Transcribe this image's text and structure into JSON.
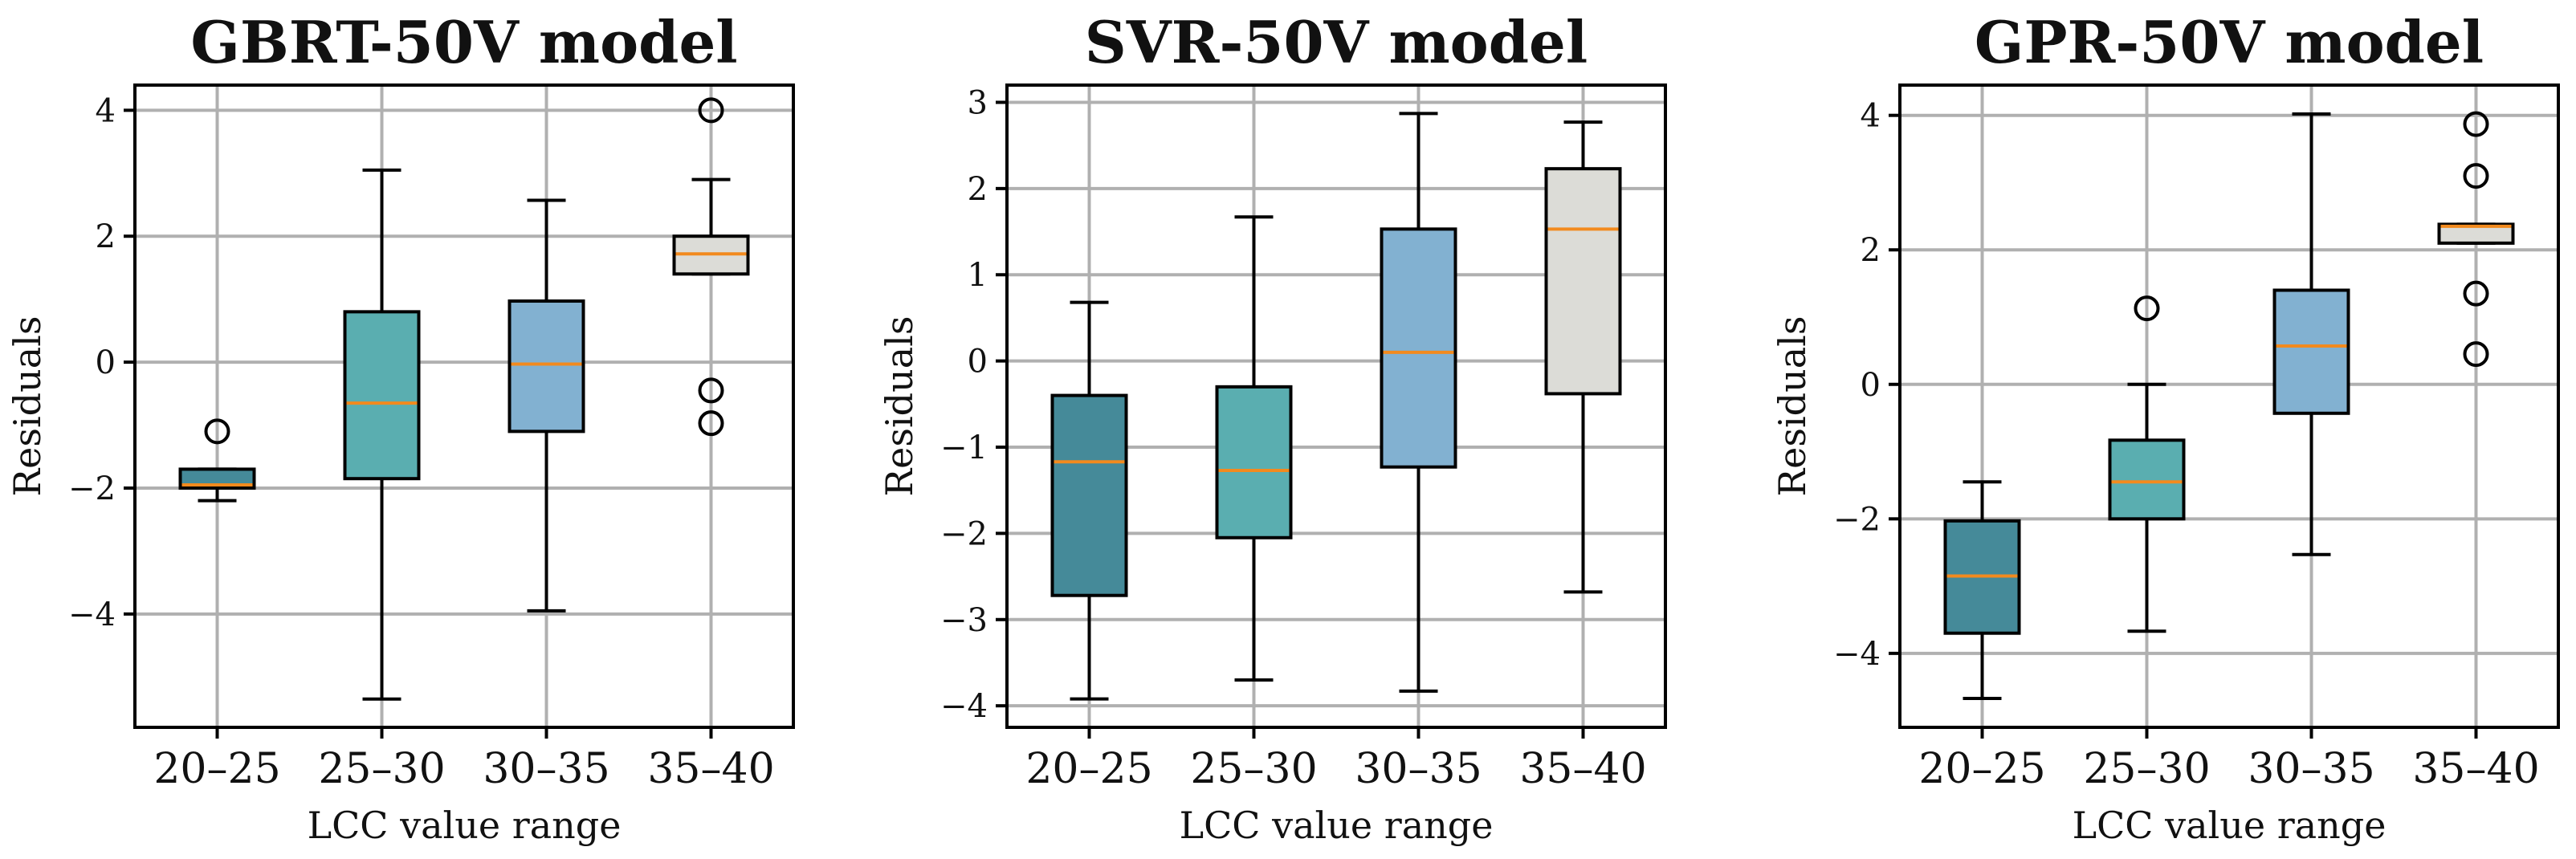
{
  "chart_data": [
    {
      "type": "box",
      "title": "GBRT-50V model",
      "xlabel": "LCC value range",
      "ylabel": "Residuals",
      "categories": [
        "20–25",
        "25–30",
        "30–35",
        "35–40"
      ],
      "ylim": [
        -5.8,
        4.4
      ],
      "yticks": [
        -4,
        -2,
        0,
        2,
        4
      ],
      "ytick_labels": [
        "−4",
        "−2",
        "0",
        "2",
        "4"
      ],
      "grid": true,
      "boxes": [
        {
          "whisker_low": -2.2,
          "q1": -2.0,
          "median": -1.95,
          "q3": -1.7,
          "whisker_high": -1.7,
          "outliers": [
            -1.1
          ]
        },
        {
          "whisker_low": -5.35,
          "q1": -1.85,
          "median": -0.65,
          "q3": 0.8,
          "whisker_high": 3.05,
          "outliers": []
        },
        {
          "whisker_low": -3.95,
          "q1": -1.1,
          "median": -0.03,
          "q3": 0.97,
          "whisker_high": 2.57,
          "outliers": []
        },
        {
          "whisker_low": 1.4,
          "q1": 1.4,
          "median": 1.72,
          "q3": 2.0,
          "whisker_high": 2.9,
          "outliers": [
            4.0,
            -0.45,
            -0.97
          ]
        }
      ]
    },
    {
      "type": "box",
      "title": "SVR-50V model",
      "xlabel": "LCC value range",
      "ylabel": "Residuals",
      "categories": [
        "20–25",
        "25–30",
        "30–35",
        "35–40"
      ],
      "ylim": [
        -4.25,
        3.2
      ],
      "yticks": [
        -4,
        -3,
        -2,
        -1,
        0,
        1,
        2,
        3
      ],
      "ytick_labels": [
        "−4",
        "−3",
        "−2",
        "−1",
        "0",
        "1",
        "2",
        "3"
      ],
      "grid": true,
      "boxes": [
        {
          "whisker_low": -3.92,
          "q1": -2.72,
          "median": -1.17,
          "q3": -0.4,
          "whisker_high": 0.68,
          "outliers": []
        },
        {
          "whisker_low": -3.7,
          "q1": -2.05,
          "median": -1.27,
          "q3": -0.3,
          "whisker_high": 1.67,
          "outliers": []
        },
        {
          "whisker_low": -3.83,
          "q1": -1.23,
          "median": 0.1,
          "q3": 1.53,
          "whisker_high": 2.87,
          "outliers": []
        },
        {
          "whisker_low": -2.68,
          "q1": -0.38,
          "median": 1.53,
          "q3": 2.23,
          "whisker_high": 2.77,
          "outliers": []
        }
      ]
    },
    {
      "type": "box",
      "title": "GPR-50V model",
      "xlabel": "LCC value range",
      "ylabel": "Residuals",
      "categories": [
        "20–25",
        "25–30",
        "30–35",
        "35–40"
      ],
      "ylim": [
        -5.1,
        4.45
      ],
      "yticks": [
        -4,
        -2,
        0,
        2,
        4
      ],
      "ytick_labels": [
        "−4",
        "−2",
        "0",
        "2",
        "4"
      ],
      "grid": true,
      "boxes": [
        {
          "whisker_low": -4.67,
          "q1": -3.7,
          "median": -2.85,
          "q3": -2.03,
          "whisker_high": -1.45,
          "outliers": []
        },
        {
          "whisker_low": -3.67,
          "q1": -2.0,
          "median": -1.45,
          "q3": -0.83,
          "whisker_high": 0.0,
          "outliers": [
            1.13
          ]
        },
        {
          "whisker_low": -2.53,
          "q1": -0.43,
          "median": 0.57,
          "q3": 1.4,
          "whisker_high": 4.02,
          "outliers": []
        },
        {
          "whisker_low": 2.1,
          "q1": 2.1,
          "median": 2.35,
          "q3": 2.38,
          "whisker_high": 2.38,
          "outliers": [
            3.87,
            3.1,
            1.35,
            0.45
          ]
        }
      ]
    }
  ],
  "colors": {
    "box_fills": [
      "#458a99",
      "#5aaeb0",
      "#82b1d1",
      "#dcdcd7"
    ],
    "median": "#f28a1e",
    "edge": "#000000",
    "grid": "#b0b0b0"
  }
}
